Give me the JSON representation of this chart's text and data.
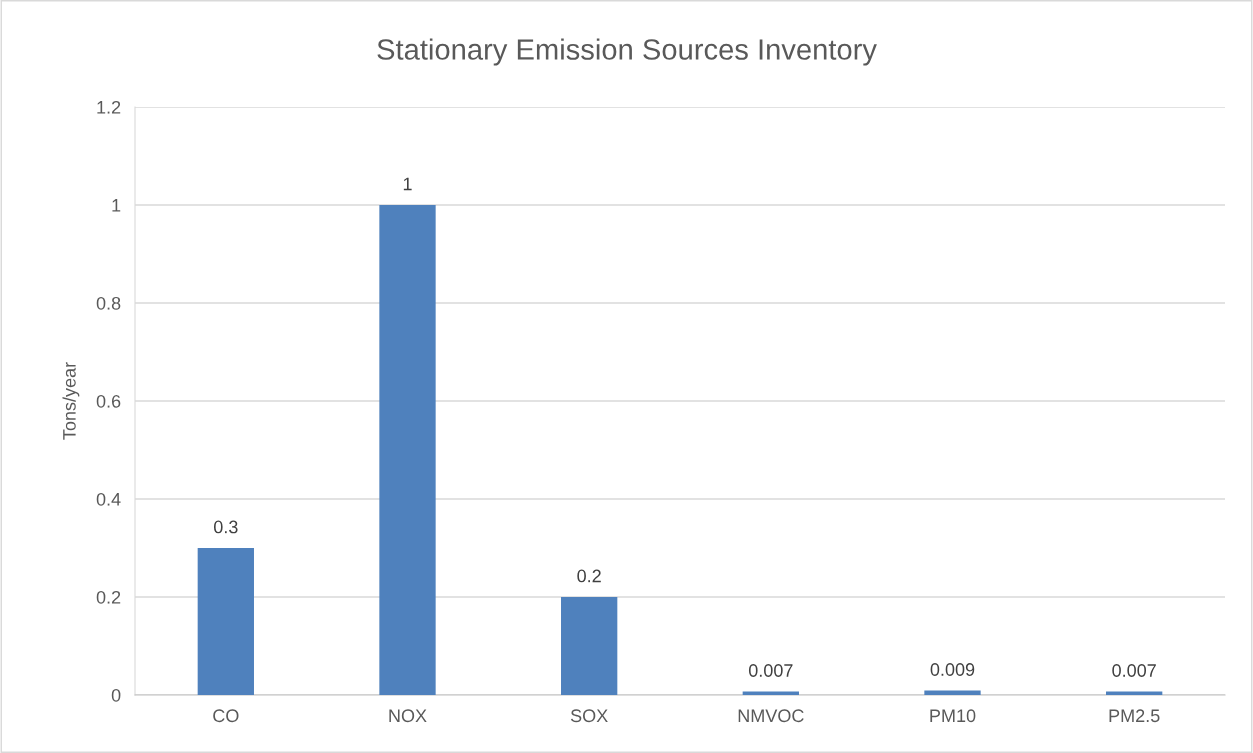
{
  "chart_data": {
    "type": "bar",
    "title": "Stationary Emission Sources Inventory",
    "ylabel": "Tons/year",
    "categories": [
      "CO",
      "NOX",
      "SOX",
      "NMVOC",
      "PM10",
      "PM2.5"
    ],
    "values": [
      0.3,
      1,
      0.2,
      0.007,
      0.009,
      0.007
    ],
    "color": "#4f81bd",
    "ylim": [
      0,
      1.2
    ],
    "yticks": [
      0,
      0.2,
      0.4,
      0.6,
      0.8,
      1,
      1.2
    ],
    "grid": "y",
    "data_labels": true
  }
}
